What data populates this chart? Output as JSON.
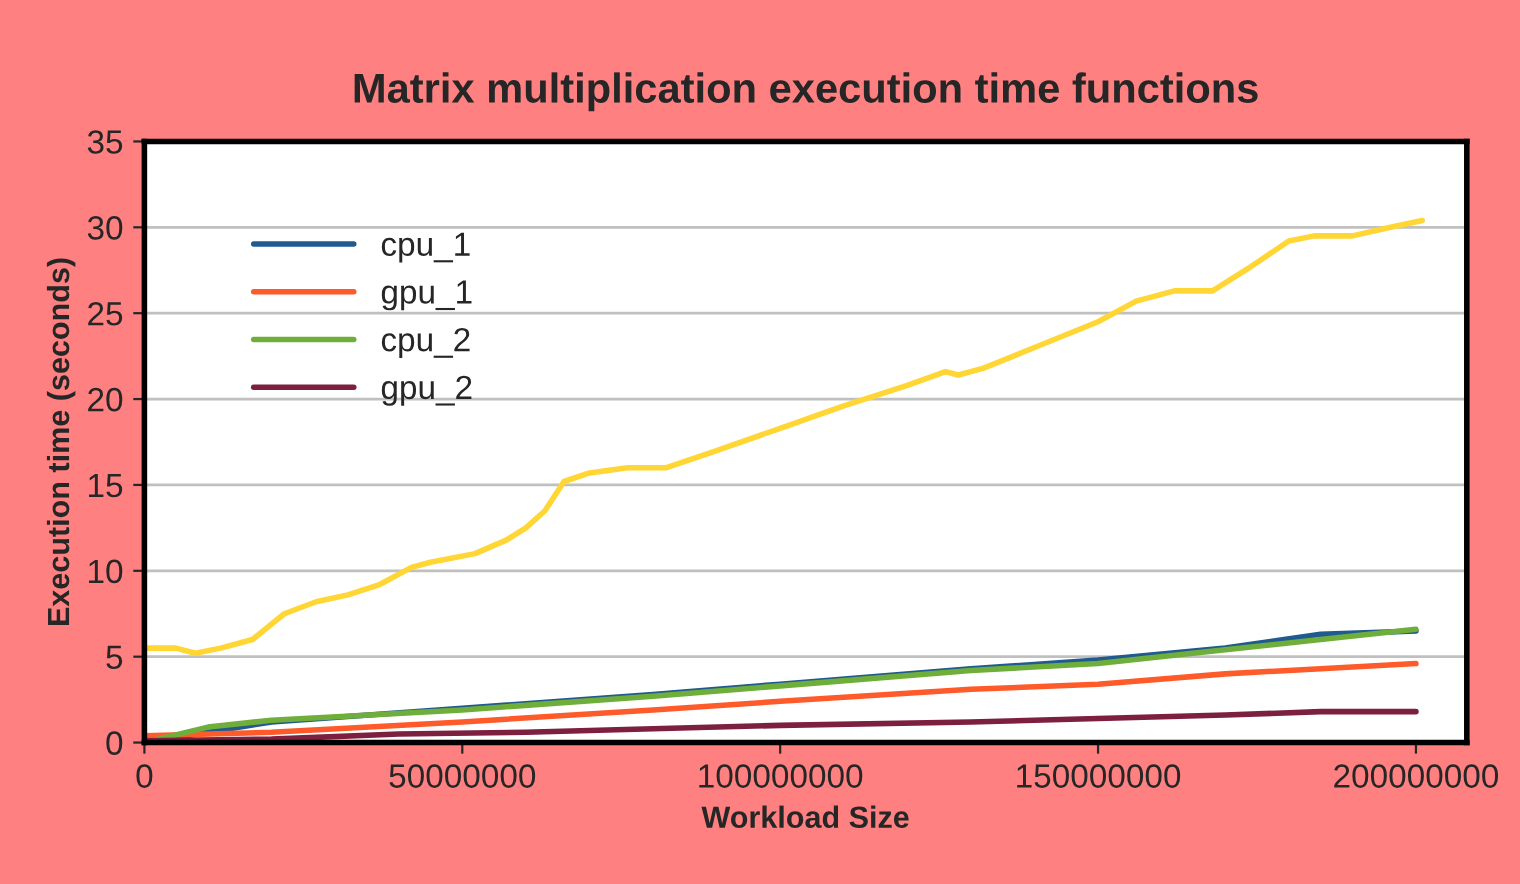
{
  "chart_data": {
    "type": "line",
    "title": "Matrix multiplication execution time functions",
    "xlabel": "Workload Size",
    "ylabel": "Execution time (seconds)",
    "xlim": [
      0,
      208000000
    ],
    "xticks": [
      0,
      50000000,
      100000000,
      150000000,
      200000000
    ],
    "ylim": [
      0,
      35
    ],
    "yticks": [
      0,
      5,
      10,
      15,
      20,
      25,
      30,
      35
    ],
    "grid": "y",
    "legend": "top left",
    "line_style": "solid",
    "marker": "none",
    "series": [
      {
        "name": "cpu_1",
        "color": "#1f5b8e",
        "x": [
          0,
          20000000,
          50000000,
          80000000,
          100000000,
          130000000,
          150000000,
          170000000,
          185000000,
          200000000
        ],
        "values": [
          0,
          1.2,
          2,
          2.8,
          3.4,
          4.3,
          4.8,
          5.5,
          6.3,
          6.5
        ]
      },
      {
        "name": "gpu_1",
        "color": "#ff5a2a",
        "x": [
          0,
          20000000,
          50000000,
          80000000,
          100000000,
          130000000,
          150000000,
          170000000,
          185000000,
          200000000
        ],
        "values": [
          0.4,
          0.6,
          1.2,
          1.9,
          2.4,
          3.1,
          3.4,
          4.0,
          4.3,
          4.6
        ]
      },
      {
        "color": "#ffd633",
        "x": [
          0,
          5000000,
          8000000,
          12000000,
          17000000,
          22000000,
          27000000,
          32000000,
          37000000,
          42000000,
          45000000,
          52000000,
          57000000,
          60000000,
          63000000,
          66000000,
          70000000,
          76000000,
          82000000,
          90000000,
          100000000,
          110000000,
          120000000,
          126000000,
          128000000,
          132000000,
          140000000,
          150000000,
          156000000,
          162000000,
          168000000,
          174000000,
          180000000,
          184000000,
          190000000,
          196000000,
          201000000
        ],
        "values": [
          5.5,
          5.5,
          5.2,
          5.5,
          6,
          7.5,
          8.2,
          8.6,
          9.2,
          10.2,
          10.5,
          11,
          11.8,
          12.5,
          13.5,
          15.2,
          15.7,
          16,
          16,
          17,
          18.3,
          19.6,
          20.8,
          21.6,
          21.4,
          21.8,
          23,
          24.5,
          25.7,
          26.3,
          26.3,
          27.7,
          29.2,
          29.5,
          29.5,
          30,
          30.4
        ]
      },
      {
        "name": "cpu_2",
        "color": "#6fae3a",
        "x": [
          0,
          10000000,
          20000000,
          50000000,
          80000000,
          100000000,
          130000000,
          150000000,
          170000000,
          185000000,
          200000000
        ],
        "values": [
          0,
          0.9,
          1.3,
          1.9,
          2.7,
          3.3,
          4.2,
          4.6,
          5.4,
          6.0,
          6.6
        ]
      },
      {
        "name": "gpu_2",
        "color": "#7d1f3f",
        "x": [
          0,
          20000000,
          40000000,
          60000000,
          80000000,
          100000000,
          130000000,
          150000000,
          170000000,
          185000000,
          200000000
        ],
        "values": [
          0.1,
          0.2,
          0.5,
          0.6,
          0.8,
          1.0,
          1.2,
          1.4,
          1.6,
          1.8,
          1.8
        ]
      }
    ]
  }
}
